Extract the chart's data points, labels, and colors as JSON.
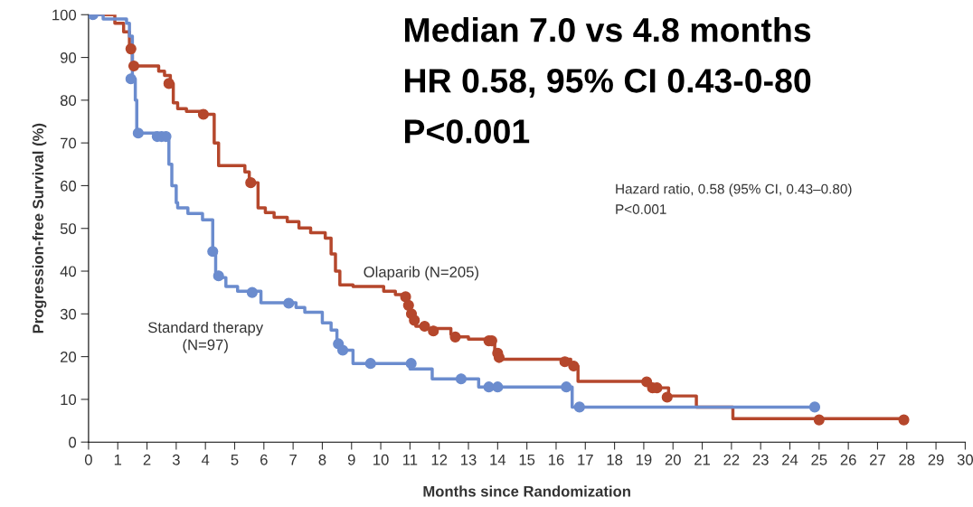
{
  "chart_data": {
    "type": "step",
    "xlabel": "Months since Randomization",
    "ylabel": "Progression-free Survival (%)",
    "xlim": [
      0,
      30
    ],
    "xticks": [
      0,
      1,
      2,
      3,
      4,
      5,
      6,
      7,
      8,
      9,
      10,
      11,
      12,
      13,
      14,
      15,
      16,
      17,
      18,
      19,
      20,
      21,
      22,
      23,
      24,
      25,
      26,
      27,
      28,
      29,
      30
    ],
    "ylim": [
      0,
      100
    ],
    "yticks": [
      0,
      10,
      20,
      30,
      40,
      50,
      60,
      70,
      80,
      90,
      100
    ],
    "grid": false,
    "annotations": [
      "Median 7.0 vs 4.8 months",
      "HR 0.58, 95% CI 0.43-0-80",
      "P<0.001",
      "Hazard ratio, 0.58 (95% CI, 0.43–0.80)",
      "P<0.001"
    ],
    "series": [
      {
        "name": "Olaparib (N=205)",
        "color": "#b5472c",
        "x": [
          0,
          0.9,
          1.2,
          1.4,
          1.5,
          2.4,
          2.6,
          2.8,
          2.9,
          3.05,
          3.35,
          4.0,
          4.3,
          4.45,
          5.2,
          5.35,
          5.5,
          5.8,
          6.05,
          6.35,
          6.8,
          7.2,
          7.6,
          8.1,
          8.3,
          8.45,
          8.6,
          9.05,
          10.1,
          10.5,
          10.9,
          11.0,
          11.1,
          11.2,
          11.5,
          12.4,
          12.6,
          13.0,
          13.6,
          13.9,
          14.1,
          16.5,
          16.75,
          19.2,
          19.85,
          20.8,
          22.05,
          27.9
        ],
        "values": [
          100,
          98,
          96,
          92,
          88,
          86.8,
          85.8,
          83.9,
          79.4,
          78,
          77.4,
          76.7,
          70,
          64.7,
          64.7,
          63.2,
          60.7,
          54.8,
          53.7,
          52.6,
          51.6,
          50.1,
          49,
          47.7,
          44,
          40,
          36.8,
          36.4,
          35.3,
          34.5,
          32,
          30,
          28.5,
          27.1,
          26.6,
          25.2,
          24.6,
          24.1,
          23.7,
          20.8,
          19.4,
          17.8,
          14.2,
          12.7,
          10.8,
          8.2,
          5.5,
          5.5
        ]
      },
      {
        "name": "Standard therapy\n(N=97)",
        "color": "#6b8cce",
        "x": [
          0,
          0.5,
          1.3,
          1.4,
          1.5,
          1.6,
          1.65,
          2.3,
          2.75,
          2.85,
          3.0,
          3.05,
          3.4,
          3.9,
          4.25,
          4.35,
          4.7,
          5.1,
          5.9,
          7.1,
          7.4,
          8.0,
          8.3,
          8.5,
          8.65,
          9.05,
          11.0,
          11.76,
          13.35,
          16.55,
          24.7
        ],
        "values": [
          100,
          99,
          98,
          95,
          85,
          80,
          72.3,
          71.2,
          65,
          60,
          56,
          54.8,
          53.5,
          52,
          44.6,
          38.5,
          36.4,
          35.3,
          32.6,
          31.5,
          30.4,
          27.9,
          26.2,
          23,
          21.5,
          18.4,
          17.1,
          14.8,
          12.9,
          8.2,
          8.2
        ]
      },
      {
        "type": "scatter",
        "marker": "circle",
        "color": "#b5472c",
        "x": [
          1.45,
          1.55,
          2.75,
          3.93,
          5.55,
          10.85,
          10.95,
          11.05,
          11.15,
          11.5,
          11.8,
          12.55,
          13.7,
          13.8,
          14.0,
          14.05,
          16.3,
          16.6,
          19.1,
          19.3,
          19.45,
          19.8,
          25.0,
          27.9
        ],
        "values": [
          92,
          88,
          83.9,
          76.7,
          60.7,
          34,
          32,
          30,
          28.5,
          27.1,
          26,
          24.6,
          23.7,
          23.7,
          20.8,
          19.8,
          18.8,
          17.8,
          14.1,
          12.7,
          12.7,
          10.5,
          5.2,
          5.2
        ]
      },
      {
        "type": "scatter",
        "marker": "circle",
        "color": "#6b8cce",
        "x": [
          0.15,
          1.45,
          1.7,
          2.35,
          2.5,
          2.65,
          4.25,
          4.45,
          5.6,
          6.85,
          8.55,
          8.7,
          9.65,
          11.04,
          12.75,
          13.7,
          14.0,
          16.35,
          16.8,
          24.85
        ],
        "values": [
          100,
          85,
          72.3,
          71.5,
          71.5,
          71.5,
          44.6,
          38.9,
          35,
          32.5,
          23,
          21.5,
          18.4,
          18.4,
          14.8,
          12.9,
          12.9,
          12.9,
          8.2,
          8.2
        ]
      }
    ]
  }
}
